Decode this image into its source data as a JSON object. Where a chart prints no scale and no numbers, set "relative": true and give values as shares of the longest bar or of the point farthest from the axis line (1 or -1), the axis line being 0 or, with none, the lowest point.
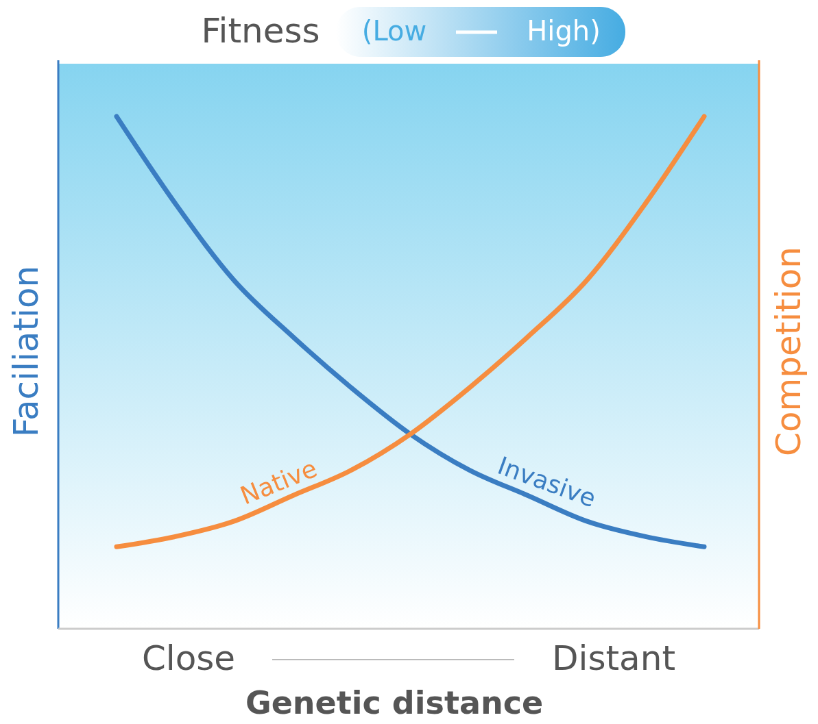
{
  "chart_data": {
    "type": "line",
    "title": "Fitness",
    "xlabel": "Genetic distance",
    "ylabel": "Faciliation",
    "y2label": "Competition",
    "relative": true,
    "line_style": "solid",
    "categories": [
      null,
      null,
      null,
      null,
      null,
      null,
      null,
      null,
      null,
      null,
      null
    ],
    "series": [
      {
        "name": "Invasive",
        "color": "#3a7dc2",
        "values": [
          1.0,
          0.83,
          0.68,
          0.57,
          0.47,
          0.38,
          0.31,
          0.26,
          0.21,
          0.18,
          0.16
        ]
      },
      {
        "name": "Native",
        "color": "#f68d3f",
        "values": [
          0.16,
          0.18,
          0.21,
          0.26,
          0.31,
          0.38,
          0.47,
          0.57,
          0.68,
          0.83,
          1.0
        ]
      }
    ],
    "annotations": [
      "(Low",
      "High)",
      "Close",
      "Distant"
    ]
  }
}
